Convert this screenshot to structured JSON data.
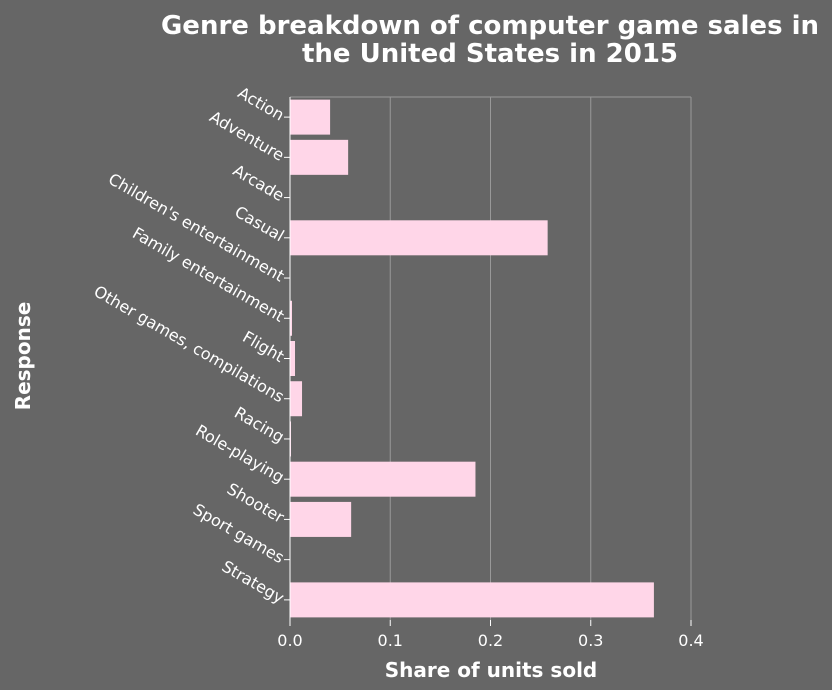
{
  "chart_data": {
    "type": "bar",
    "orientation": "horizontal",
    "title_lines": [
      "Genre breakdown of computer game sales in",
      "the United States in 2015"
    ],
    "xlabel": "Share of units sold",
    "ylabel": "Response",
    "xlim": [
      0,
      0.4
    ],
    "xticks": [
      "0.0",
      "0.1",
      "0.2",
      "0.3",
      "0.4"
    ],
    "grid": true,
    "categories": [
      "Action",
      "Adventure",
      "Arcade",
      "Casual",
      "Children's entertainment",
      "Family entertainment",
      "Flight",
      "Other games, compilations",
      "Racing",
      "Role-playing",
      "Shooter",
      "Sport games",
      "Strategy"
    ],
    "values": [
      0.04,
      0.058,
      0.0,
      0.257,
      0.0,
      0.002,
      0.005,
      0.012,
      0.001,
      0.185,
      0.061,
      0.0,
      0.363
    ],
    "colors": {
      "background": "#666666",
      "bar": "#ffd6e8",
      "text": "#ffffff",
      "grid": "#999999",
      "axis": "#ffffff"
    }
  }
}
